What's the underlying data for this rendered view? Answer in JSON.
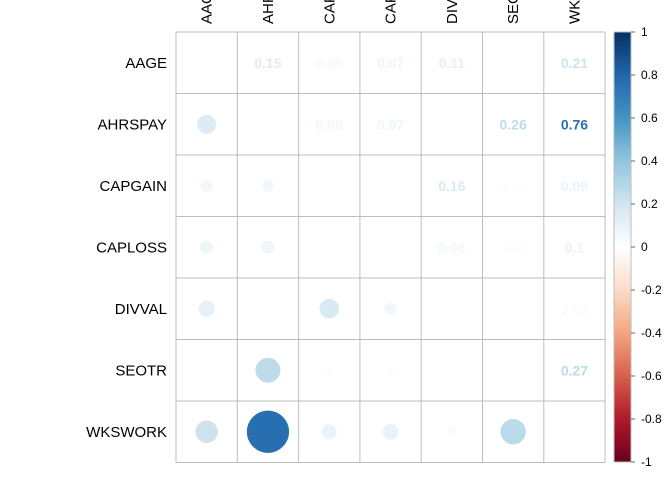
{
  "chart_data": {
    "type": "heatmap",
    "variables": [
      "AAGE",
      "AHRSPAY",
      "CAPGAIN",
      "CAPLOSS",
      "DIVVAL",
      "SEOTR",
      "WKSWORK"
    ],
    "column_labels_visible": [
      "AAG",
      "AHR",
      "CAP",
      "CAP",
      "DIV",
      "SEO",
      "WK"
    ],
    "cells": [
      {
        "row": "AAGE",
        "col": "AHRSPAY",
        "value": 0.15,
        "shown": "label",
        "label": "0.15"
      },
      {
        "row": "AAGE",
        "col": "CAPGAIN",
        "value": 0.06,
        "shown": "label",
        "label": "0.06"
      },
      {
        "row": "AAGE",
        "col": "CAPLOSS",
        "value": 0.07,
        "shown": "label",
        "label": "0.07"
      },
      {
        "row": "AAGE",
        "col": "DIVVAL",
        "value": 0.11,
        "shown": "label",
        "label": "0.11"
      },
      {
        "row": "AAGE",
        "col": "WKSWORK",
        "value": 0.21,
        "shown": "label",
        "label": "0.21"
      },
      {
        "row": "AHRSPAY",
        "col": "AAGE",
        "value": 0.15,
        "shown": "circle"
      },
      {
        "row": "AHRSPAY",
        "col": "CAPGAIN",
        "value": 0.06,
        "shown": "label",
        "label": "0.06"
      },
      {
        "row": "AHRSPAY",
        "col": "CAPLOSS",
        "value": 0.07,
        "shown": "label",
        "label": "0.07"
      },
      {
        "row": "AHRSPAY",
        "col": "SEOTR",
        "value": 0.26,
        "shown": "label",
        "label": "0.26"
      },
      {
        "row": "AHRSPAY",
        "col": "WKSWORK",
        "value": 0.76,
        "shown": "label",
        "label": "0.76"
      },
      {
        "row": "CAPGAIN",
        "col": "AAGE",
        "value": 0.06,
        "shown": "circle"
      },
      {
        "row": "CAPGAIN",
        "col": "AHRSPAY",
        "value": 0.06,
        "shown": "circle"
      },
      {
        "row": "CAPGAIN",
        "col": "CAPLOSS",
        "value": 0.01,
        "shown": "label",
        "label": "0.01"
      },
      {
        "row": "CAPGAIN",
        "col": "DIVVAL",
        "value": 0.16,
        "shown": "label",
        "label": "0.16"
      },
      {
        "row": "CAPGAIN",
        "col": "SEOTR",
        "value": 0.02,
        "shown": "label",
        "label": "0.02"
      },
      {
        "row": "CAPGAIN",
        "col": "WKSWORK",
        "value": 0.09,
        "shown": "label",
        "label": "0.09"
      },
      {
        "row": "CAPLOSS",
        "col": "AAGE",
        "value": 0.07,
        "shown": "circle"
      },
      {
        "row": "CAPLOSS",
        "col": "AHRSPAY",
        "value": 0.07,
        "shown": "circle"
      },
      {
        "row": "CAPLOSS",
        "col": "CAPGAIN",
        "value": 0.01,
        "shown": "circle"
      },
      {
        "row": "CAPLOSS",
        "col": "DIVVAL",
        "value": 0.06,
        "shown": "label",
        "label": "0.06"
      },
      {
        "row": "CAPLOSS",
        "col": "SEOTR",
        "value": 0.02,
        "shown": "label",
        "label": "0.02"
      },
      {
        "row": "CAPLOSS",
        "col": "WKSWORK",
        "value": 0.1,
        "shown": "label",
        "label": "0.1"
      },
      {
        "row": "DIVVAL",
        "col": "AAGE",
        "value": 0.11,
        "shown": "circle"
      },
      {
        "row": "DIVVAL",
        "col": "CAPGAIN",
        "value": 0.16,
        "shown": "circle"
      },
      {
        "row": "DIVVAL",
        "col": "CAPLOSS",
        "value": 0.06,
        "shown": "circle"
      },
      {
        "row": "DIVVAL",
        "col": "WKSWORK",
        "value": 0.03,
        "shown": "label",
        "label": "0.03"
      },
      {
        "row": "SEOTR",
        "col": "AHRSPAY",
        "value": 0.26,
        "shown": "circle"
      },
      {
        "row": "SEOTR",
        "col": "CAPGAIN",
        "value": 0.02,
        "shown": "circle"
      },
      {
        "row": "SEOTR",
        "col": "CAPLOSS",
        "value": 0.02,
        "shown": "circle"
      },
      {
        "row": "SEOTR",
        "col": "WKSWORK",
        "value": 0.27,
        "shown": "label",
        "label": "0.27"
      },
      {
        "row": "WKSWORK",
        "col": "AAGE",
        "value": 0.21,
        "shown": "circle"
      },
      {
        "row": "WKSWORK",
        "col": "AHRSPAY",
        "value": 0.76,
        "shown": "circle"
      },
      {
        "row": "WKSWORK",
        "col": "CAPGAIN",
        "value": 0.09,
        "shown": "circle"
      },
      {
        "row": "WKSWORK",
        "col": "CAPLOSS",
        "value": 0.1,
        "shown": "circle"
      },
      {
        "row": "WKSWORK",
        "col": "DIVVAL",
        "value": 0.03,
        "shown": "circle"
      },
      {
        "row": "WKSWORK",
        "col": "SEOTR",
        "value": 0.27,
        "shown": "circle"
      }
    ],
    "colorbar": {
      "range": [
        -1,
        1
      ],
      "ticks": [
        1,
        0.8,
        0.6,
        0.4,
        0.2,
        0,
        -0.2,
        -0.4,
        -0.6,
        -0.8,
        -1
      ],
      "tick_labels": [
        "1",
        "0.8",
        "0.6",
        "0.4",
        "0.2",
        "0",
        "-0.2",
        "-0.4",
        "-0.6",
        "-0.8",
        "-1"
      ],
      "colors": [
        "#67001F",
        "#B2182B",
        "#D6604D",
        "#F4A582",
        "#FDDBC7",
        "#FFFFFF",
        "#D1E5F0",
        "#92C5DE",
        "#4393C3",
        "#2166AC",
        "#053061"
      ]
    },
    "grid": true,
    "title": "",
    "xlabel": "",
    "ylabel": ""
  }
}
